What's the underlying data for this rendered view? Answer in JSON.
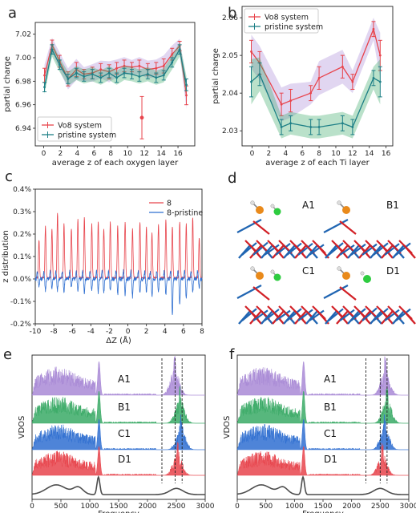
{
  "figure": {
    "panel_letters": [
      "a",
      "b",
      "c",
      "d",
      "e",
      "f"
    ],
    "molecule_labels": [
      "A1",
      "B1",
      "C1",
      "D1"
    ],
    "colors": {
      "red": "#e8444c",
      "teal": "#1d7f86",
      "purple": "#a98ad6",
      "green": "#3aaa66",
      "blue": "#2f6fd1",
      "gray": "#4d4d4d",
      "ti": "#2065b2",
      "o": "#d22026",
      "orange": "#e98a1b",
      "cl": "#2ecc40"
    }
  },
  "chart_data": [
    {
      "id": "a",
      "type": "line",
      "xlabel": "average z of each oxygen layer",
      "ylabel": "partial charge",
      "xlim": [
        -1,
        18
      ],
      "ylim": [
        6.925,
        7.03
      ],
      "xticks": [
        0,
        2,
        4,
        6,
        8,
        10,
        12,
        14,
        16
      ],
      "yticks": [
        6.94,
        6.96,
        6.98,
        7.0,
        7.02
      ],
      "ytick_labels": [
        "6.94",
        "6.96",
        "6.98",
        "7.00",
        "7.02"
      ],
      "legend": "bottom-left",
      "series": [
        {
          "name": "Vo8 system",
          "color": "#e8444c",
          "band": "#a98ad6",
          "x": [
            0.1,
            1.0,
            1.9,
            2.9,
            3.9,
            4.8,
            5.8,
            6.8,
            7.8,
            8.7,
            9.6,
            10.5,
            11.4,
            12.4,
            13.4,
            14.3,
            15.3,
            16.2,
            17.0
          ],
          "y": [
            6.985,
            7.011,
            6.997,
            6.982,
            6.99,
            6.986,
            6.987,
            6.99,
            6.988,
            6.991,
            6.993,
            6.992,
            6.993,
            6.99,
            6.991,
            6.993,
            7.003,
            7.01,
            6.968
          ],
          "err": [
            0.006,
            0.004,
            0.005,
            0.006,
            0.006,
            0.004,
            0.005,
            0.005,
            0.006,
            0.005,
            0.005,
            0.004,
            0.005,
            0.005,
            0.005,
            0.006,
            0.005,
            0.004,
            0.008
          ],
          "outlier": {
            "x": 11.7,
            "y": 6.949,
            "err": 0.018
          }
        },
        {
          "name": "pristine system",
          "color": "#1d7f86",
          "band": "#3aaa66",
          "x": [
            0.1,
            1.0,
            1.9,
            2.9,
            3.9,
            4.8,
            5.8,
            6.8,
            7.8,
            8.7,
            9.6,
            10.5,
            11.4,
            12.4,
            13.4,
            14.3,
            15.3,
            16.2,
            17.0
          ],
          "y": [
            6.975,
            7.007,
            6.994,
            6.982,
            6.987,
            6.984,
            6.986,
            6.983,
            6.987,
            6.983,
            6.987,
            6.986,
            6.984,
            6.986,
            6.983,
            6.985,
            6.996,
            7.007,
            6.977
          ],
          "err": [
            0.004,
            0.004,
            0.004,
            0.004,
            0.004,
            0.004,
            0.004,
            0.004,
            0.004,
            0.004,
            0.004,
            0.004,
            0.004,
            0.004,
            0.004,
            0.004,
            0.004,
            0.004,
            0.005
          ]
        }
      ]
    },
    {
      "id": "b",
      "type": "line",
      "xlabel": "average z of each Ti layer",
      "ylabel": "partial charge",
      "xlim": [
        -1.2,
        16.8
      ],
      "ylim": [
        2.026,
        2.063
      ],
      "xticks": [
        0,
        2,
        4,
        6,
        8,
        10,
        12,
        14,
        16
      ],
      "yticks": [
        2.03,
        2.04,
        2.05,
        2.06
      ],
      "ytick_labels": [
        "2.03",
        "2.04",
        "2.05",
        "2.06"
      ],
      "legend": "top-left",
      "series": [
        {
          "name": "Vo8 system",
          "color": "#e8444c",
          "band": "#a98ad6",
          "x": [
            -0.1,
            0.9,
            3.5,
            4.6,
            7.0,
            8.0,
            10.8,
            12.0,
            14.5,
            15.3
          ],
          "y": [
            2.051,
            2.048,
            2.037,
            2.038,
            2.04,
            2.044,
            2.047,
            2.043,
            2.057,
            2.05
          ],
          "err": [
            0.003,
            0.003,
            0.003,
            0.003,
            0.002,
            0.003,
            0.003,
            0.002,
            0.002,
            0.004
          ]
        },
        {
          "name": "pristine system",
          "color": "#1d7f86",
          "band": "#3aaa66",
          "x": [
            -0.1,
            0.9,
            3.5,
            4.6,
            7.0,
            8.0,
            10.8,
            12.0,
            14.5,
            15.3
          ],
          "y": [
            2.043,
            2.045,
            2.031,
            2.032,
            2.031,
            2.031,
            2.032,
            2.031,
            2.044,
            2.043
          ],
          "err": [
            0.004,
            0.003,
            0.002,
            0.002,
            0.002,
            0.002,
            0.002,
            0.002,
            0.002,
            0.004
          ]
        }
      ]
    },
    {
      "id": "c",
      "type": "line",
      "xlabel": "ΔZ (Å)",
      "ylabel": "z distribution",
      "xlim": [
        -10,
        8
      ],
      "ylim": [
        -0.2,
        0.4
      ],
      "xticks": [
        -10,
        -8,
        -6,
        -4,
        -2,
        0,
        2,
        4,
        6,
        8
      ],
      "yticks": [
        -0.2,
        -0.1,
        0.0,
        0.1,
        0.2,
        0.3,
        0.4
      ],
      "ytick_labels": [
        "-0.2%",
        "-0.1%",
        "0.0%",
        "0.1%",
        "0.2%",
        "0.3%",
        "0.4%"
      ],
      "legend": "top-right",
      "series": [
        {
          "name": "8",
          "color": "#e8444c",
          "peaks_x": [
            -9.6,
            -8.9,
            -8.2,
            -7.6,
            -6.9,
            -6.1,
            -5.4,
            -4.7,
            -3.9,
            -3.2,
            -2.6,
            -1.9,
            -1.1,
            -0.3,
            0.5,
            1.3,
            2.0,
            2.6,
            3.3,
            4.1,
            4.8,
            5.6,
            6.3,
            7.0,
            7.7
          ],
          "peaks_y": [
            0.17,
            0.23,
            0.22,
            0.29,
            0.24,
            0.22,
            0.26,
            0.27,
            0.24,
            0.25,
            0.22,
            0.25,
            0.23,
            0.25,
            0.22,
            0.25,
            0.23,
            0.2,
            0.24,
            0.26,
            0.23,
            0.25,
            0.24,
            0.27,
            0.18
          ]
        },
        {
          "name": "8-pristine",
          "color": "#2f6fd1",
          "peaks_x": [
            -9.6,
            -8.9,
            -8.2,
            -7.6,
            -6.9,
            -6.1,
            -5.4,
            -4.7,
            -3.9,
            -3.2,
            -2.6,
            -1.9,
            -1.1,
            -0.3,
            0.5,
            1.3,
            2.0,
            2.6,
            3.3,
            4.1,
            4.8,
            5.6,
            6.3,
            7.0,
            7.7
          ],
          "peaks_y": [
            -0.03,
            -0.05,
            -0.04,
            -0.05,
            -0.06,
            -0.04,
            -0.05,
            -0.06,
            -0.05,
            -0.06,
            -0.06,
            -0.05,
            -0.07,
            -0.07,
            -0.08,
            -0.06,
            -0.06,
            -0.08,
            -0.06,
            -0.07,
            -0.16,
            -0.11,
            -0.09,
            -0.06,
            -0.04
          ]
        }
      ]
    },
    {
      "id": "e",
      "type": "area",
      "xlabel": "Frequency",
      "ylabel": "VDOS",
      "xlim": [
        0,
        3000
      ],
      "xticks": [
        0,
        500,
        1000,
        1500,
        2000,
        2500,
        3000
      ],
      "vlines": [
        2250,
        2480,
        2600
      ],
      "series": [
        {
          "name": "A1",
          "color": "#a98ad6",
          "high_peak": 2470
        },
        {
          "name": "B1",
          "color": "#3aaa66",
          "high_peak": 2560
        },
        {
          "name": "C1",
          "color": "#2f6fd1",
          "high_peak": 2580
        },
        {
          "name": "D1",
          "color": "#e8444c",
          "high_peak": 2520
        },
        {
          "name": "",
          "color": "#4d4d4d",
          "high_peak": 2500
        }
      ]
    },
    {
      "id": "f",
      "type": "area",
      "xlabel": "Frequency",
      "ylabel": "VDOS",
      "xlim": [
        0,
        3000
      ],
      "xticks": [
        0,
        500,
        1000,
        1500,
        2000,
        2500,
        3000
      ],
      "vlines": [
        2250,
        2500,
        2620
      ],
      "series": [
        {
          "name": "A1",
          "color": "#a98ad6",
          "high_peak": 2590
        },
        {
          "name": "B1",
          "color": "#3aaa66",
          "high_peak": 2620
        },
        {
          "name": "C1",
          "color": "#2f6fd1",
          "high_peak": 2580
        },
        {
          "name": "D1",
          "color": "#e8444c",
          "high_peak": 2540
        },
        {
          "name": "",
          "color": "#4d4d4d",
          "high_peak": 2500
        }
      ]
    }
  ]
}
